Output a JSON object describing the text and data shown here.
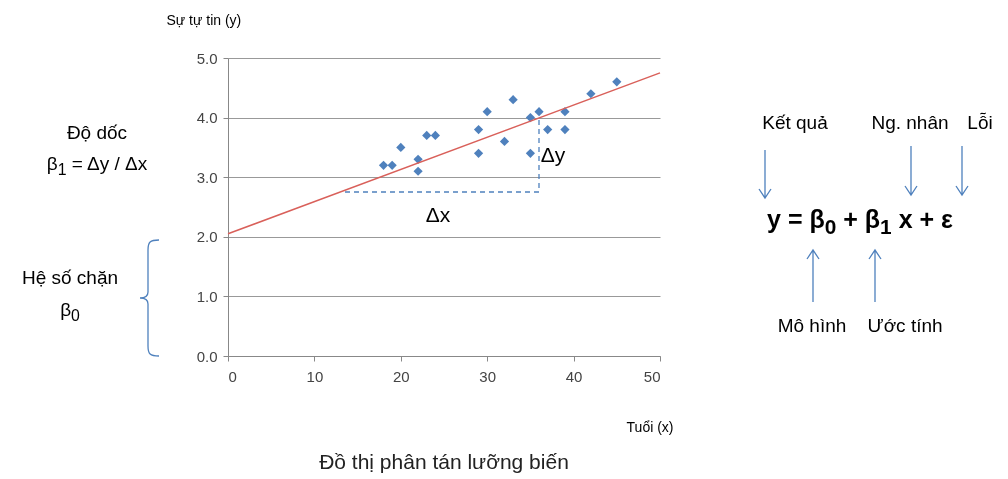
{
  "chart_data": {
    "type": "scatter",
    "title": "Đồ thị phân tán lưỡng biến",
    "xlabel": "Tuổi  (x)",
    "ylabel": "Sự tự tin (y)",
    "xlim": [
      0,
      50
    ],
    "xticks": [
      0,
      10,
      20,
      30,
      40,
      50
    ],
    "ylim": [
      0,
      5
    ],
    "yticks": [
      {
        "value": 0,
        "label": "0.0"
      },
      {
        "value": 1,
        "label": "1.0"
      },
      {
        "value": 2,
        "label": "2.0"
      },
      {
        "value": 3,
        "label": "3.0"
      },
      {
        "value": 4,
        "label": "4.0"
      },
      {
        "value": 5,
        "label": "5.0"
      }
    ],
    "grid": "y",
    "legend": false,
    "series": [
      {
        "type": "scatter",
        "marker": "diamond",
        "color": "#4f81bd",
        "x": [
          18,
          19,
          20,
          22,
          22,
          23,
          24,
          29,
          29,
          30,
          32,
          33,
          35,
          35,
          36,
          37,
          39,
          39,
          42,
          45
        ],
        "values": [
          3.2,
          3.2,
          3.5,
          3.3,
          3.1,
          3.7,
          3.7,
          3.8,
          3.4,
          4.1,
          3.6,
          4.3,
          4.0,
          3.4,
          4.1,
          3.8,
          4.1,
          3.8,
          4.4,
          4.6
        ]
      },
      {
        "type": "line",
        "color": "#d9605a",
        "x": [
          0,
          50
        ],
        "values": [
          2.05,
          4.75
        ]
      }
    ],
    "annotations": [
      "Độ dốc",
      "β$_{1}$ = Δy / Δx",
      "Hệ số chặn",
      "β$_{0}$",
      "Kết quả",
      "Ng. nhân",
      "Lỗi",
      "y = β$_{0}$ + β$_{1}$ x + ε",
      "Mô hình",
      "Ước tính",
      "Δx",
      "Δy"
    ]
  }
}
